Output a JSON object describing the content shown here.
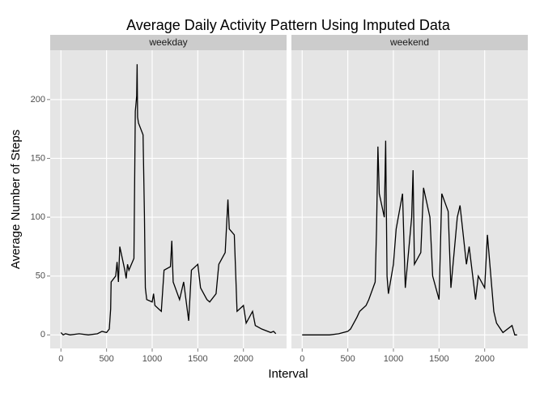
{
  "title": "Average Daily Activity Pattern Using Imputed Data",
  "x_label": "Interval",
  "y_label": "Average Number of Steps",
  "chart_data": [
    {
      "type": "line",
      "facet": "weekday",
      "color": "#000000",
      "grid": true,
      "xlim": [
        -117.75,
        2472.75
      ],
      "ylim": [
        -11.5,
        241.9
      ],
      "xticks": [
        0,
        500,
        1000,
        1500,
        2000
      ],
      "yticks": [
        0,
        50,
        100,
        150,
        200
      ],
      "x": [
        0,
        25,
        50,
        100,
        200,
        300,
        400,
        450,
        500,
        530,
        545,
        550,
        600,
        615,
        630,
        645,
        700,
        715,
        730,
        745,
        800,
        815,
        830,
        835,
        840,
        850,
        900,
        915,
        925,
        940,
        1000,
        1015,
        1030,
        1100,
        1130,
        1200,
        1215,
        1230,
        1300,
        1345,
        1400,
        1430,
        1500,
        1530,
        1600,
        1630,
        1700,
        1730,
        1800,
        1830,
        1845,
        1900,
        1930,
        2000,
        2030,
        2100,
        2130,
        2200,
        2300,
        2330,
        2355
      ],
      "values": [
        2,
        0,
        1,
        0,
        1,
        0,
        1,
        3,
        2,
        5,
        22,
        45,
        50,
        62,
        45,
        75,
        55,
        48,
        60,
        55,
        65,
        190,
        203,
        230,
        185,
        180,
        170,
        102,
        40,
        30,
        28,
        35,
        25,
        20,
        55,
        58,
        80,
        45,
        30,
        45,
        12,
        55,
        60,
        40,
        30,
        28,
        35,
        60,
        70,
        115,
        90,
        85,
        20,
        25,
        10,
        20,
        8,
        5,
        2,
        3,
        1
      ]
    },
    {
      "type": "line",
      "facet": "weekend",
      "color": "#000000",
      "grid": true,
      "xlim": [
        -117.75,
        2472.75
      ],
      "ylim": [
        -11.5,
        241.9
      ],
      "xticks": [
        0,
        500,
        1000,
        1500,
        2000
      ],
      "yticks": [
        0,
        50,
        100,
        150,
        200
      ],
      "x": [
        0,
        100,
        200,
        300,
        400,
        500,
        530,
        600,
        630,
        700,
        730,
        800,
        815,
        830,
        845,
        900,
        915,
        930,
        945,
        1000,
        1030,
        1100,
        1130,
        1200,
        1215,
        1230,
        1300,
        1330,
        1400,
        1430,
        1500,
        1530,
        1600,
        1630,
        1700,
        1730,
        1800,
        1830,
        1900,
        1930,
        2000,
        2030,
        2100,
        2130,
        2200,
        2300,
        2330,
        2355
      ],
      "values": [
        0,
        0,
        0,
        0,
        1,
        3,
        5,
        15,
        20,
        25,
        30,
        45,
        90,
        160,
        120,
        100,
        165,
        50,
        35,
        60,
        90,
        120,
        40,
        100,
        140,
        60,
        70,
        125,
        100,
        50,
        30,
        120,
        105,
        40,
        100,
        110,
        60,
        75,
        30,
        50,
        40,
        85,
        20,
        10,
        2,
        8,
        0,
        0
      ]
    }
  ]
}
